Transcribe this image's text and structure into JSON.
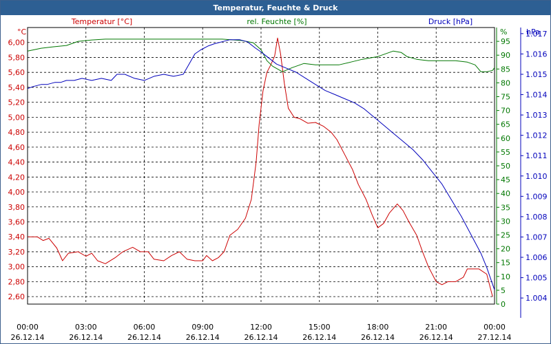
{
  "window": {
    "title": "Temperatur, Feuchte & Druck"
  },
  "colors": {
    "temperature": "#cc0000",
    "humidity": "#007700",
    "pressure": "#0000bb",
    "grid": "#000000",
    "titlebar": "#2d5f93"
  },
  "chart_data": {
    "type": "line",
    "title": "Temperatur, Feuchte & Druck",
    "grid": true,
    "x_ticks": [
      {
        "time": "00:00",
        "date": "26.12.14"
      },
      {
        "time": "03:00",
        "date": "26.12.14"
      },
      {
        "time": "06:00",
        "date": "26.12.14"
      },
      {
        "time": "09:00",
        "date": "26.12.14"
      },
      {
        "time": "12:00",
        "date": "26.12.14"
      },
      {
        "time": "15:00",
        "date": "26.12.14"
      },
      {
        "time": "18:00",
        "date": "26.12.14"
      },
      {
        "time": "21:00",
        "date": "26.12.14"
      },
      {
        "time": "00:00",
        "date": "27.12.14"
      }
    ],
    "axes": {
      "temperature": {
        "label": "Temperatur [°C]",
        "unit": "°C",
        "range": [
          2.5,
          6.2
        ],
        "ticks": [
          "2,60",
          "2,80",
          "3,00",
          "3,20",
          "3,40",
          "3,60",
          "3,80",
          "4,00",
          "4,20",
          "4,40",
          "4,60",
          "4,80",
          "5,00",
          "5,20",
          "5,40",
          "5,60",
          "5,80",
          "6,00"
        ]
      },
      "humidity": {
        "label": "rel. Feuchte [%]",
        "unit": "%",
        "range": [
          0,
          100
        ],
        "ticks": [
          "0",
          "5",
          "10",
          "15",
          "20",
          "25",
          "30",
          "35",
          "40",
          "45",
          "50",
          "55",
          "60",
          "65",
          "70",
          "75",
          "80",
          "85",
          "90",
          "95"
        ]
      },
      "pressure": {
        "label": "Druck [hPa]",
        "unit": "hPa",
        "range": [
          1.0037,
          1.0173
        ],
        "ticks": [
          "1.004",
          "1.005",
          "1.006",
          "1.007",
          "1.008",
          "1.009",
          "1.010",
          "1.011",
          "1.012",
          "1.013",
          "1.014",
          "1.015",
          "1.016",
          "1.017"
        ]
      }
    },
    "series": [
      {
        "name": "Temperatur [°C]",
        "axis": "temperature",
        "points": [
          [
            0,
            3.4
          ],
          [
            0.5,
            3.4
          ],
          [
            0.8,
            3.35
          ],
          [
            1.1,
            3.38
          ],
          [
            1.5,
            3.25
          ],
          [
            1.8,
            3.08
          ],
          [
            2.1,
            3.18
          ],
          [
            2.6,
            3.2
          ],
          [
            3.0,
            3.14
          ],
          [
            3.3,
            3.18
          ],
          [
            3.6,
            3.08
          ],
          [
            4.0,
            3.04
          ],
          [
            4.5,
            3.12
          ],
          [
            4.9,
            3.2
          ],
          [
            5.4,
            3.26
          ],
          [
            5.8,
            3.2
          ],
          [
            6.2,
            3.2
          ],
          [
            6.5,
            3.1
          ],
          [
            7.0,
            3.08
          ],
          [
            7.4,
            3.15
          ],
          [
            7.8,
            3.2
          ],
          [
            8.2,
            3.1
          ],
          [
            8.6,
            3.08
          ],
          [
            9.0,
            3.08
          ],
          [
            9.2,
            3.15
          ],
          [
            9.5,
            3.08
          ],
          [
            9.8,
            3.12
          ],
          [
            10.1,
            3.2
          ],
          [
            10.4,
            3.42
          ],
          [
            10.8,
            3.5
          ],
          [
            11.2,
            3.65
          ],
          [
            11.5,
            3.9
          ],
          [
            11.75,
            4.4
          ],
          [
            11.9,
            4.9
          ],
          [
            12.1,
            5.35
          ],
          [
            12.3,
            5.6
          ],
          [
            12.5,
            5.7
          ],
          [
            12.7,
            5.82
          ],
          [
            12.85,
            6.06
          ],
          [
            13.0,
            5.85
          ],
          [
            13.2,
            5.45
          ],
          [
            13.4,
            5.12
          ],
          [
            13.7,
            5.0
          ],
          [
            14.0,
            4.98
          ],
          [
            14.4,
            4.92
          ],
          [
            14.8,
            4.93
          ],
          [
            15.2,
            4.88
          ],
          [
            15.6,
            4.8
          ],
          [
            15.9,
            4.7
          ],
          [
            16.3,
            4.5
          ],
          [
            16.7,
            4.3
          ],
          [
            17.0,
            4.1
          ],
          [
            17.4,
            3.9
          ],
          [
            17.7,
            3.7
          ],
          [
            18.0,
            3.52
          ],
          [
            18.3,
            3.58
          ],
          [
            18.6,
            3.72
          ],
          [
            19.0,
            3.84
          ],
          [
            19.3,
            3.75
          ],
          [
            19.6,
            3.6
          ],
          [
            20.0,
            3.42
          ],
          [
            20.3,
            3.2
          ],
          [
            20.6,
            3.0
          ],
          [
            21.0,
            2.8
          ],
          [
            21.3,
            2.76
          ],
          [
            21.6,
            2.8
          ],
          [
            22.0,
            2.8
          ],
          [
            22.4,
            2.86
          ],
          [
            22.6,
            2.97
          ],
          [
            22.9,
            2.97
          ],
          [
            23.2,
            2.97
          ],
          [
            23.6,
            2.9
          ],
          [
            23.9,
            2.6
          ]
        ]
      },
      {
        "name": "rel. Feuchte [%]",
        "axis": "humidity",
        "points": [
          [
            0,
            91.5
          ],
          [
            0.7,
            92.5
          ],
          [
            1.3,
            93
          ],
          [
            2.0,
            93.5
          ],
          [
            2.6,
            95
          ],
          [
            3.3,
            95.5
          ],
          [
            4.0,
            95.8
          ],
          [
            5.0,
            95.8
          ],
          [
            6.0,
            95.8
          ],
          [
            7.0,
            95.8
          ],
          [
            8.0,
            95.8
          ],
          [
            9.0,
            95.8
          ],
          [
            10.0,
            95.8
          ],
          [
            11.0,
            95.3
          ],
          [
            11.6,
            94.5
          ],
          [
            12.0,
            92
          ],
          [
            12.3,
            88
          ],
          [
            12.6,
            86
          ],
          [
            13.1,
            84
          ],
          [
            13.6,
            85.5
          ],
          [
            14.2,
            87
          ],
          [
            14.8,
            86.5
          ],
          [
            15.3,
            86.5
          ],
          [
            16.0,
            86.5
          ],
          [
            16.6,
            87.5
          ],
          [
            17.2,
            88.5
          ],
          [
            17.6,
            89
          ],
          [
            18.0,
            89.5
          ],
          [
            18.4,
            90.5
          ],
          [
            18.8,
            91.5
          ],
          [
            19.2,
            91
          ],
          [
            19.5,
            89.5
          ],
          [
            20.0,
            88.5
          ],
          [
            20.6,
            88
          ],
          [
            21.0,
            88
          ],
          [
            21.5,
            88
          ],
          [
            22.0,
            88
          ],
          [
            22.6,
            87.5
          ],
          [
            23.0,
            86.5
          ],
          [
            23.3,
            84
          ],
          [
            23.6,
            84
          ],
          [
            23.9,
            84.5
          ],
          [
            24.0,
            85.5
          ]
        ]
      },
      {
        "name": "Druck [hPa]",
        "axis": "pressure",
        "points": [
          [
            0,
            1.0143
          ],
          [
            0.3,
            1.0144
          ],
          [
            0.7,
            1.0145
          ],
          [
            1.0,
            1.0145
          ],
          [
            1.4,
            1.0146
          ],
          [
            1.7,
            1.0146
          ],
          [
            2.0,
            1.0147
          ],
          [
            2.4,
            1.0147
          ],
          [
            2.8,
            1.0148
          ],
          [
            3.3,
            1.0147
          ],
          [
            3.8,
            1.0148
          ],
          [
            4.3,
            1.0147
          ],
          [
            4.6,
            1.015
          ],
          [
            5.0,
            1.015
          ],
          [
            5.5,
            1.0148
          ],
          [
            6.0,
            1.0147
          ],
          [
            6.5,
            1.0149
          ],
          [
            7.0,
            1.015
          ],
          [
            7.5,
            1.0149
          ],
          [
            8.0,
            1.015
          ],
          [
            8.3,
            1.0155
          ],
          [
            8.6,
            1.016
          ],
          [
            8.9,
            1.0162
          ],
          [
            9.3,
            1.0164
          ],
          [
            9.6,
            1.0165
          ],
          [
            10.0,
            1.0166
          ],
          [
            10.4,
            1.0167
          ],
          [
            10.9,
            1.0167
          ],
          [
            11.3,
            1.0166
          ],
          [
            11.7,
            1.0163
          ],
          [
            12.0,
            1.0161
          ],
          [
            12.4,
            1.0158
          ],
          [
            12.8,
            1.0155
          ],
          [
            13.3,
            1.0153
          ],
          [
            13.8,
            1.0151
          ],
          [
            14.3,
            1.0148
          ],
          [
            14.8,
            1.0145
          ],
          [
            15.3,
            1.0142
          ],
          [
            15.8,
            1.014
          ],
          [
            16.3,
            1.0138
          ],
          [
            16.8,
            1.0136
          ],
          [
            17.3,
            1.0133
          ],
          [
            17.8,
            1.0129
          ],
          [
            18.3,
            1.0125
          ],
          [
            18.8,
            1.0121
          ],
          [
            19.3,
            1.0117
          ],
          [
            19.8,
            1.0113
          ],
          [
            20.3,
            1.0108
          ],
          [
            20.8,
            1.0102
          ],
          [
            21.3,
            1.0096
          ],
          [
            21.8,
            1.0088
          ],
          [
            22.3,
            1.008
          ],
          [
            22.8,
            1.0071
          ],
          [
            23.3,
            1.0062
          ],
          [
            23.6,
            1.0055
          ],
          [
            24.0,
            1.0044
          ]
        ]
      }
    ]
  }
}
